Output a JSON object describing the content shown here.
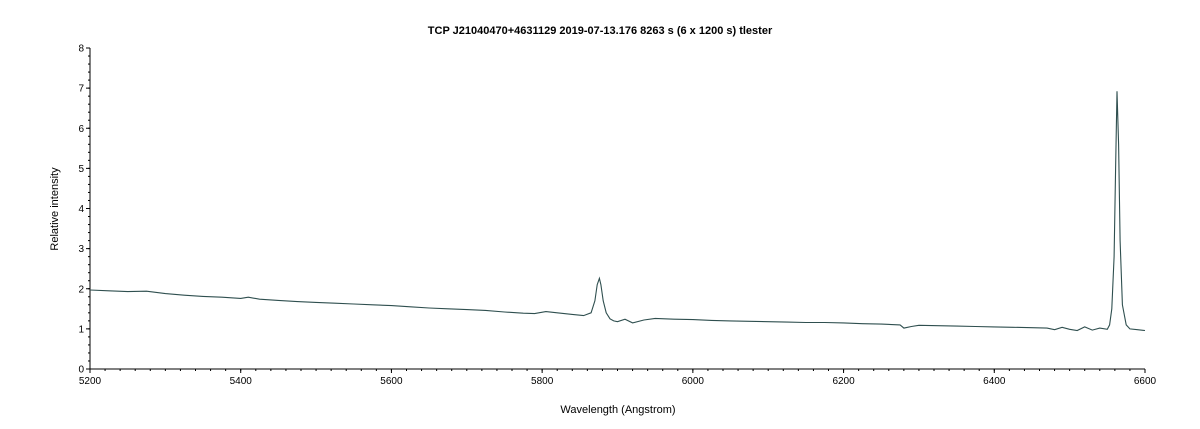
{
  "chart_data": {
    "type": "line",
    "title": "TCP J21040470+4631129  2019-07-13.176  8263 s (6 x 1200 s)  tlester",
    "xlabel": "Wavelength (Angstrom)",
    "ylabel": "Relative intensity",
    "xlim": [
      5200,
      6600
    ],
    "ylim": [
      0,
      8
    ],
    "x_ticks": [
      5200,
      5400,
      5600,
      5800,
      6000,
      6200,
      6400,
      6600
    ],
    "y_ticks": [
      0,
      1,
      2,
      3,
      4,
      5,
      6,
      7,
      8
    ],
    "grid": false,
    "legend": "none",
    "series_color": "#2f4f4f",
    "series": [
      {
        "x": [
          5200,
          5225,
          5250,
          5275,
          5300,
          5325,
          5350,
          5375,
          5400,
          5410,
          5425,
          5450,
          5475,
          5500,
          5525,
          5550,
          5575,
          5600,
          5625,
          5650,
          5675,
          5700,
          5725,
          5750,
          5775,
          5790,
          5805,
          5820,
          5840,
          5855,
          5865,
          5870,
          5873,
          5876,
          5878,
          5881,
          5885,
          5890,
          5895,
          5900,
          5910,
          5920,
          5935,
          5950,
          5975,
          6000,
          6025,
          6050,
          6075,
          6100,
          6125,
          6150,
          6175,
          6200,
          6225,
          6250,
          6275,
          6280,
          6290,
          6300,
          6325,
          6350,
          6375,
          6400,
          6425,
          6450,
          6470,
          6480,
          6490,
          6500,
          6510,
          6520,
          6530,
          6540,
          6550,
          6553,
          6556,
          6559,
          6561,
          6562.8,
          6565,
          6567,
          6570,
          6575,
          6580,
          6590,
          6600
        ],
        "y": [
          1.97,
          1.95,
          1.93,
          1.94,
          1.88,
          1.84,
          1.81,
          1.79,
          1.76,
          1.79,
          1.74,
          1.71,
          1.68,
          1.66,
          1.64,
          1.62,
          1.6,
          1.58,
          1.55,
          1.52,
          1.5,
          1.48,
          1.46,
          1.42,
          1.39,
          1.38,
          1.43,
          1.4,
          1.36,
          1.33,
          1.4,
          1.7,
          2.1,
          2.26,
          2.1,
          1.7,
          1.4,
          1.25,
          1.2,
          1.18,
          1.24,
          1.15,
          1.22,
          1.26,
          1.24,
          1.23,
          1.21,
          1.2,
          1.19,
          1.18,
          1.17,
          1.16,
          1.16,
          1.15,
          1.13,
          1.12,
          1.1,
          1.02,
          1.06,
          1.09,
          1.08,
          1.07,
          1.06,
          1.05,
          1.04,
          1.03,
          1.02,
          0.98,
          1.04,
          0.99,
          0.96,
          1.05,
          0.97,
          1.02,
          0.99,
          1.1,
          1.5,
          2.8,
          5.0,
          6.92,
          5.6,
          3.2,
          1.6,
          1.1,
          1.0,
          0.98,
          0.96
        ]
      }
    ]
  }
}
